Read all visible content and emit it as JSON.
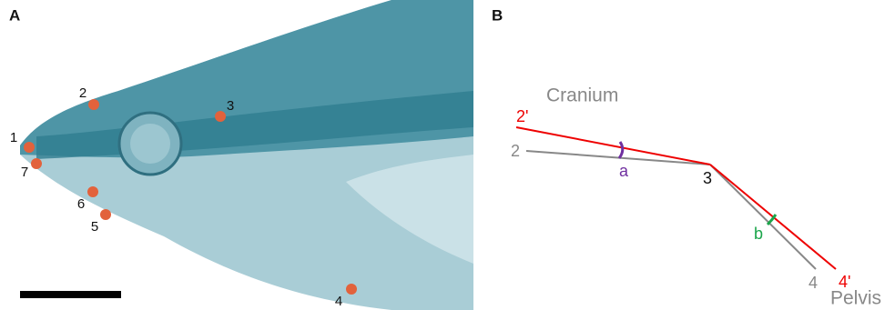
{
  "panel_a": {
    "label": "A",
    "landmarks": [
      "1",
      "2",
      "3",
      "4",
      "5",
      "6",
      "7"
    ]
  },
  "panel_b": {
    "label": "B",
    "cranium": "Cranium",
    "pelvis": "Pelvis",
    "points": {
      "p2": "2",
      "p2_prime": "2'",
      "p3": "3",
      "p4": "4",
      "p4_prime": "4'"
    },
    "angles": {
      "a": "a",
      "b": "b"
    }
  }
}
